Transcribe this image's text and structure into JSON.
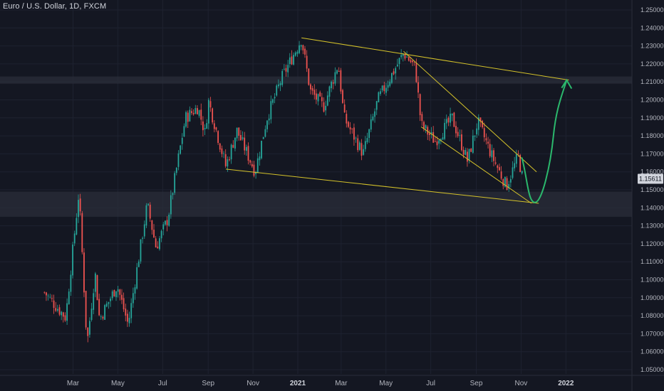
{
  "header": {
    "symbol_title": "Euro / U.S. Dollar, 1D, FXCM"
  },
  "colors": {
    "background": "#141722",
    "up": "#26a69a",
    "down": "#ef5350",
    "trendline": "#d4c22a",
    "projection": "#2bb86d",
    "zone": "#2a2e39"
  },
  "chart_data": {
    "type": "candlestick",
    "symbol": "EURUSD",
    "interval": "1D",
    "source": "FXCM",
    "x_ticks": [
      "Mar",
      "May",
      "Jul",
      "Sep",
      "Nov",
      "2021",
      "Mar",
      "May",
      "Jul",
      "Sep",
      "Nov",
      "2022"
    ],
    "y_ticks": [
      "1.25000",
      "1.24000",
      "1.23000",
      "1.22000",
      "1.21000",
      "1.20000",
      "1.19000",
      "1.18000",
      "1.17000",
      "1.16000",
      "1.15000",
      "1.14000",
      "1.13000",
      "1.12000",
      "1.11000",
      "1.10000",
      "1.09000",
      "1.08000",
      "1.07000",
      "1.06000",
      "1.05000"
    ],
    "ylim": [
      1.045,
      1.253
    ],
    "last_price": "1.15611",
    "price_path": [
      {
        "x": "2020-01-22",
        "y": 1.093
      },
      {
        "x": "2020-02-20",
        "y": 1.079
      },
      {
        "x": "2020-03-09",
        "y": 1.149
      },
      {
        "x": "2020-03-20",
        "y": 1.064
      },
      {
        "x": "2020-03-31",
        "y": 1.104
      },
      {
        "x": "2020-04-06",
        "y": 1.078
      },
      {
        "x": "2020-04-30",
        "y": 1.097
      },
      {
        "x": "2020-05-15",
        "y": 1.075
      },
      {
        "x": "2020-06-10",
        "y": 1.142
      },
      {
        "x": "2020-06-22",
        "y": 1.118
      },
      {
        "x": "2020-07-08",
        "y": 1.134
      },
      {
        "x": "2020-08-01",
        "y": 1.19
      },
      {
        "x": "2020-08-18",
        "y": 1.196
      },
      {
        "x": "2020-08-28",
        "y": 1.181
      },
      {
        "x": "2020-09-01",
        "y": 1.2
      },
      {
        "x": "2020-09-25",
        "y": 1.163
      },
      {
        "x": "2020-10-10",
        "y": 1.183
      },
      {
        "x": "2020-11-04",
        "y": 1.16
      },
      {
        "x": "2020-11-20",
        "y": 1.19
      },
      {
        "x": "2020-12-10",
        "y": 1.212
      },
      {
        "x": "2021-01-06",
        "y": 1.234
      },
      {
        "x": "2021-01-18",
        "y": 1.205
      },
      {
        "x": "2021-02-05",
        "y": 1.196
      },
      {
        "x": "2021-02-25",
        "y": 1.22
      },
      {
        "x": "2021-03-05",
        "y": 1.19
      },
      {
        "x": "2021-03-31",
        "y": 1.17
      },
      {
        "x": "2021-04-20",
        "y": 1.2
      },
      {
        "x": "2021-05-25",
        "y": 1.226
      },
      {
        "x": "2021-06-10",
        "y": 1.218
      },
      {
        "x": "2021-06-18",
        "y": 1.186
      },
      {
        "x": "2021-07-07",
        "y": 1.177
      },
      {
        "x": "2021-07-30",
        "y": 1.19
      },
      {
        "x": "2021-08-20",
        "y": 1.166
      },
      {
        "x": "2021-09-03",
        "y": 1.188
      },
      {
        "x": "2021-09-22",
        "y": 1.169
      },
      {
        "x": "2021-10-12",
        "y": 1.152
      },
      {
        "x": "2021-10-28",
        "y": 1.169
      },
      {
        "x": "2021-11-03",
        "y": 1.156
      }
    ],
    "support_zones": [
      {
        "from": 1.149,
        "to": 1.135
      },
      {
        "from": 1.213,
        "to": 1.209
      }
    ],
    "trendlines": [
      {
        "x1": "2021-01-06",
        "y1": 1.2345,
        "x2": "2022-01-05",
        "y2": 1.211
      },
      {
        "x1": "2020-09-25",
        "y1": 1.1615,
        "x2": "2021-11-25",
        "y2": 1.1425
      },
      {
        "x1": "2021-05-25",
        "y1": 1.227,
        "x2": "2021-11-22",
        "y2": 1.16
      },
      {
        "x1": "2021-06-18",
        "y1": 1.185,
        "x2": "2021-11-15",
        "y2": 1.1425
      }
    ],
    "projection": [
      {
        "x": "2021-11-02",
        "y": 1.168
      },
      {
        "x": "2021-11-20",
        "y": 1.143
      },
      {
        "x": "2021-12-15",
        "y": 1.18
      },
      {
        "x": "2022-01-02",
        "y": 1.211
      }
    ]
  }
}
